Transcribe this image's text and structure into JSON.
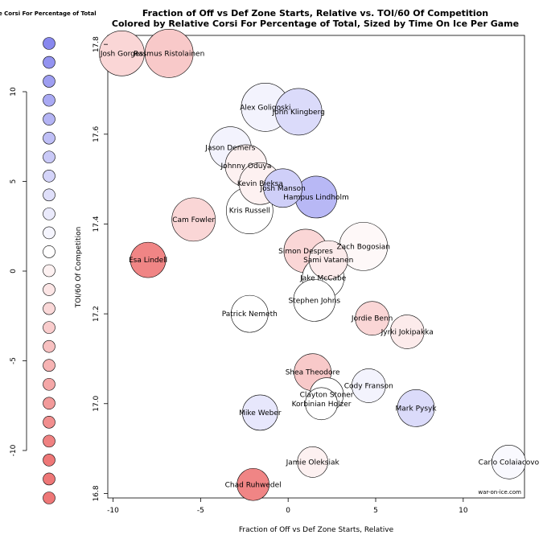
{
  "chart_data": {
    "type": "scatter",
    "title": "Fraction of Off vs Def Zone Starts, Relative vs. TOI/60 Of Competition",
    "subtitle": "Colored by Relative Corsi For Percentage of Total, Sized by Time On Ice Per Game",
    "xlabel": "Fraction of Off vs Def Zone Starts, Relative",
    "ylabel": "TOI/60 Of Competition",
    "xlim": [
      -10.3,
      13.5
    ],
    "ylim": [
      16.79,
      17.82
    ],
    "xticks": [
      "-10",
      "-5",
      "0",
      "5",
      "10"
    ],
    "yticks": [
      "16.8",
      "17.0",
      "17.2",
      "17.4",
      "17.6",
      "17.8"
    ],
    "watermark": "war-on-ice.com",
    "points": [
      {
        "name": "Josh Gorges",
        "x": -9.5,
        "y": 17.78,
        "size": 28,
        "corsi": -3
      },
      {
        "name": "Rasmus Ristolainen",
        "x": -6.8,
        "y": 17.78,
        "size": 30,
        "corsi": -4
      },
      {
        "name": "Alex Goligoski",
        "x": -1.3,
        "y": 17.66,
        "size": 30,
        "corsi": 1
      },
      {
        "name": "John Klingberg",
        "x": 0.6,
        "y": 17.65,
        "size": 29,
        "corsi": 3
      },
      {
        "name": "Jason Demers",
        "x": -3.3,
        "y": 17.57,
        "size": 26,
        "corsi": 1
      },
      {
        "name": "Johnny Oduya",
        "x": -2.4,
        "y": 17.53,
        "size": 26,
        "corsi": -1
      },
      {
        "name": "Kevin Bieksa",
        "x": -1.6,
        "y": 17.49,
        "size": 26,
        "corsi": -1
      },
      {
        "name": "Josh Manson",
        "x": -0.3,
        "y": 17.48,
        "size": 24,
        "corsi": 4
      },
      {
        "name": "Hampus Lindholm",
        "x": 1.6,
        "y": 17.46,
        "size": 26,
        "corsi": 6
      },
      {
        "name": "Kris Russell",
        "x": -2.2,
        "y": 17.43,
        "size": 29,
        "corsi": 0
      },
      {
        "name": "Cam Fowler",
        "x": -5.4,
        "y": 17.41,
        "size": 27,
        "corsi": -3
      },
      {
        "name": "Zach Bogosian",
        "x": 4.3,
        "y": 17.35,
        "size": 30,
        "corsi": -0.5
      },
      {
        "name": "Simon Despres",
        "x": 1.0,
        "y": 17.34,
        "size": 27,
        "corsi": -3
      },
      {
        "name": "Sami Vatanen",
        "x": 2.3,
        "y": 17.32,
        "size": 24,
        "corsi": -1.5
      },
      {
        "name": "Esa Lindell",
        "x": -8.0,
        "y": 17.32,
        "size": 22,
        "corsi": -9
      },
      {
        "name": "Jake McCabe",
        "x": 2.0,
        "y": 17.28,
        "size": 26,
        "corsi": 0
      },
      {
        "name": "Stephen Johns",
        "x": 1.5,
        "y": 17.23,
        "size": 26,
        "corsi": 0
      },
      {
        "name": "Patrick Nemeth",
        "x": -2.2,
        "y": 17.2,
        "size": 23,
        "corsi": 0
      },
      {
        "name": "Jordie Benn",
        "x": 4.8,
        "y": 17.19,
        "size": 21,
        "corsi": -3
      },
      {
        "name": "Jyrki Jokipakka",
        "x": 6.8,
        "y": 17.16,
        "size": 21,
        "corsi": -1.5
      },
      {
        "name": "Shea Theodore",
        "x": 1.4,
        "y": 17.07,
        "size": 23,
        "corsi": -4
      },
      {
        "name": "Cody Franson",
        "x": 4.6,
        "y": 17.04,
        "size": 21,
        "corsi": 1
      },
      {
        "name": "Clayton Stoner",
        "x": 2.2,
        "y": 17.02,
        "size": 21,
        "corsi": 0
      },
      {
        "name": "Korbinian Holzer",
        "x": 1.9,
        "y": 17.0,
        "size": 20,
        "corsi": 0
      },
      {
        "name": "Mike Weber",
        "x": -1.6,
        "y": 16.98,
        "size": 22,
        "corsi": 2
      },
      {
        "name": "Mark Pysyk",
        "x": 7.3,
        "y": 16.99,
        "size": 23,
        "corsi": 3
      },
      {
        "name": "Jamie Oleksiak",
        "x": 1.4,
        "y": 16.87,
        "size": 19,
        "corsi": -1
      },
      {
        "name": "Carlo Colaiacovo",
        "x": 12.6,
        "y": 16.87,
        "size": 21,
        "corsi": 0.5
      },
      {
        "name": "Chad Ruhwedel",
        "x": -2.0,
        "y": 16.82,
        "size": 20,
        "corsi": -9
      }
    ],
    "legend": {
      "title": "Relative Corsi For Percentage of Total",
      "ticks": [
        "10",
        "5",
        "0",
        "-5",
        "-10"
      ],
      "range": [
        10,
        -12
      ]
    },
    "colors": {
      "positive": "#8888ee",
      "negative": "#ee7777",
      "neutral": "#ffffff"
    }
  }
}
